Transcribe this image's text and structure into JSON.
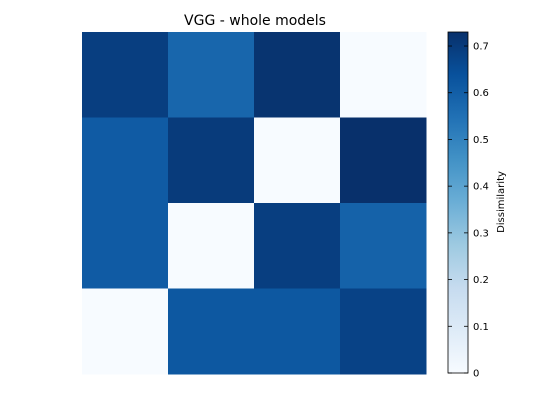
{
  "chart_data": {
    "type": "heatmap",
    "title": "VGG - whole models",
    "xlabel": "",
    "ylabel": "",
    "matrix": [
      [
        0.69,
        0.58,
        0.72,
        0.0
      ],
      [
        0.61,
        0.7,
        0.0,
        0.73
      ],
      [
        0.61,
        0.0,
        0.69,
        0.59
      ],
      [
        0.0,
        0.62,
        0.62,
        0.68
      ]
    ],
    "colormap": "Blues",
    "colorbar": {
      "label": "Dissimilarity",
      "range": [
        0,
        0.73
      ],
      "ticks": [
        0,
        0.1,
        0.2,
        0.3,
        0.4,
        0.5,
        0.6,
        0.7
      ],
      "tick_labels": [
        "0",
        "0.1",
        "0.2",
        "0.3",
        "0.4",
        "0.5",
        "0.6",
        "0.7"
      ]
    },
    "axes_visible": false
  }
}
